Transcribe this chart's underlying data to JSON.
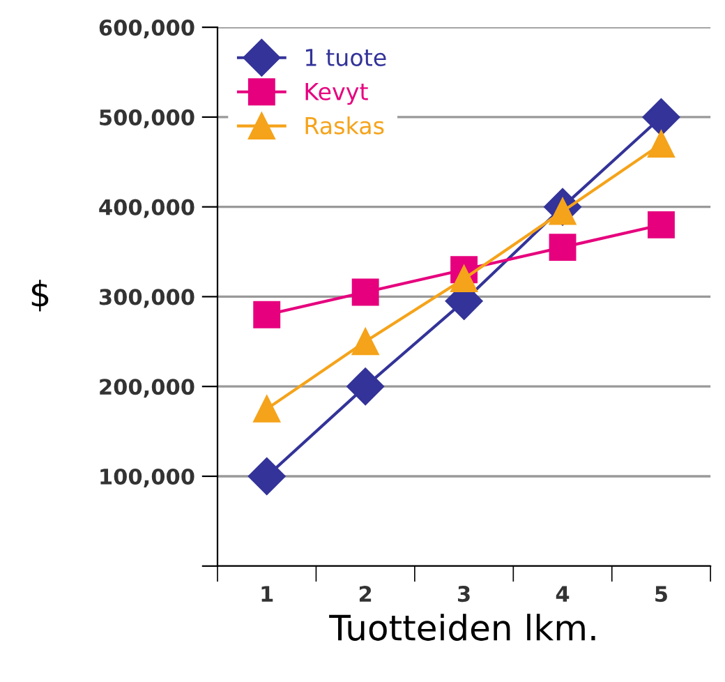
{
  "chart_data": {
    "type": "line",
    "xlabel": "Tuotteiden lkm.",
    "ylabel": "$",
    "categories": [
      "1",
      "2",
      "3",
      "4",
      "5"
    ],
    "series": [
      {
        "name": "1 tuote",
        "color": "#333399",
        "marker": "diamond",
        "values": [
          100000,
          200000,
          295000,
          400000,
          500000
        ]
      },
      {
        "name": "Kevyt",
        "color": "#e6007e",
        "marker": "square",
        "values": [
          280000,
          305000,
          330000,
          355000,
          380000
        ]
      },
      {
        "name": "Raskas",
        "color": "#f5a31a",
        "marker": "triangle",
        "values": [
          175000,
          250000,
          320000,
          395000,
          470000
        ]
      }
    ],
    "ylim": [
      0,
      600000
    ],
    "yticks": [
      {
        "value": 0,
        "label": null
      },
      {
        "value": 100000,
        "label": "100,000"
      },
      {
        "value": 200000,
        "label": "200,000"
      },
      {
        "value": 300000,
        "label": "300,000"
      },
      {
        "value": 400000,
        "label": "400,000"
      },
      {
        "value": 500000,
        "label": "500,000"
      },
      {
        "value": 600000,
        "label": "600,000"
      }
    ],
    "grid": "y",
    "legend": "top left",
    "line_style": "solid"
  }
}
